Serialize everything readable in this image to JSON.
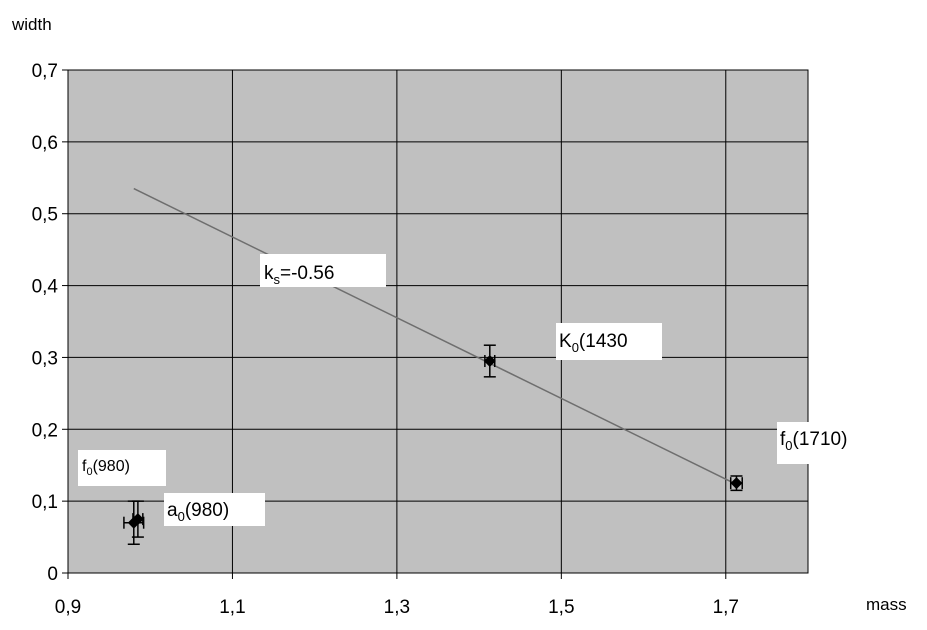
{
  "chart_data": {
    "type": "scatter",
    "xlabel": "mass",
    "ylabel": "width",
    "xlim": [
      0.9,
      1.8
    ],
    "ylim": [
      0,
      0.7
    ],
    "x_ticks": [
      "0,9",
      "1,1",
      "1,3",
      "1,5",
      "1,7"
    ],
    "x_tick_values": [
      0.9,
      1.1,
      1.3,
      1.5,
      1.7
    ],
    "y_ticks": [
      "0",
      "0,1",
      "0,2",
      "0,3",
      "0,4",
      "0,5",
      "0,6",
      "0,7"
    ],
    "y_tick_values": [
      0,
      0.1,
      0.2,
      0.3,
      0.4,
      0.5,
      0.6,
      0.7
    ],
    "grid": true,
    "colors": {
      "plot_bg": "#c0c0c0",
      "grid": "#000000",
      "trend": "#6e6e6e",
      "marker": "#000000",
      "label_bg": "#ffffff"
    },
    "points": [
      {
        "x": 0.98,
        "y": 0.07,
        "xerr": 0.012,
        "yerr": 0.03
      },
      {
        "x": 0.985,
        "y": 0.075,
        "xerr": 0.006,
        "yerr": 0.025
      },
      {
        "x": 1.413,
        "y": 0.295,
        "xerr": 0.006,
        "yerr": 0.022
      },
      {
        "x": 1.713,
        "y": 0.125,
        "xerr": 0.007,
        "yerr": 0.01
      }
    ],
    "trend_line": {
      "x1": 0.98,
      "y1": 0.535,
      "x2": 1.71,
      "y2": 0.125
    },
    "annotations": {
      "ks": {
        "base": "k",
        "sub": "s",
        "rest": "=-0.56"
      },
      "K0": {
        "base": "K",
        "sub": "0",
        "rest": "(1430"
      },
      "f0_1710": {
        "base": "f",
        "sub": "0",
        "rest": "(1710)"
      },
      "a0": {
        "base": "a",
        "sub": "0",
        "rest": "(980)"
      },
      "f0_980": {
        "base": "f",
        "sub": "0",
        "rest": "(980)"
      }
    }
  }
}
